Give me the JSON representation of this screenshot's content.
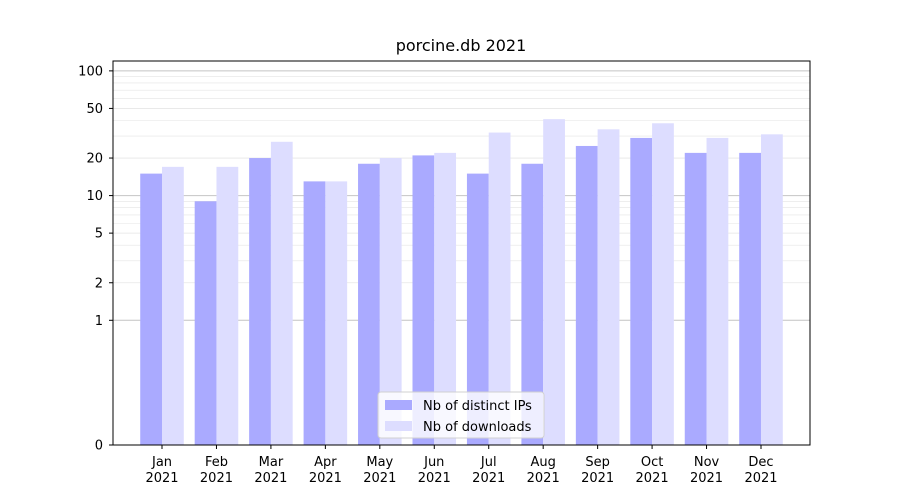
{
  "chart_data": {
    "type": "bar",
    "title": "porcine.db 2021",
    "xlabel": "",
    "ylabel": "",
    "yscale": "symlog",
    "ylim": [
      0,
      120
    ],
    "yticks": [
      0,
      1,
      2,
      5,
      10,
      20,
      50,
      100
    ],
    "categories": [
      "Jan\n2021",
      "Feb\n2021",
      "Mar\n2021",
      "Apr\n2021",
      "May\n2021",
      "Jun\n2021",
      "Jul\n2021",
      "Aug\n2021",
      "Sep\n2021",
      "Oct\n2021",
      "Nov\n2021",
      "Dec\n2021"
    ],
    "series": [
      {
        "name": "Nb of distinct IPs",
        "color": "#aaaaff",
        "values": [
          15,
          9,
          20,
          13,
          18,
          21,
          15,
          18,
          25,
          29,
          22,
          22
        ]
      },
      {
        "name": "Nb of downloads",
        "color": "#ddddff",
        "values": [
          17,
          17,
          27,
          13,
          20,
          22,
          32,
          41,
          34,
          38,
          29,
          31
        ]
      }
    ],
    "grid": true,
    "legend_position": "bottom-center"
  }
}
